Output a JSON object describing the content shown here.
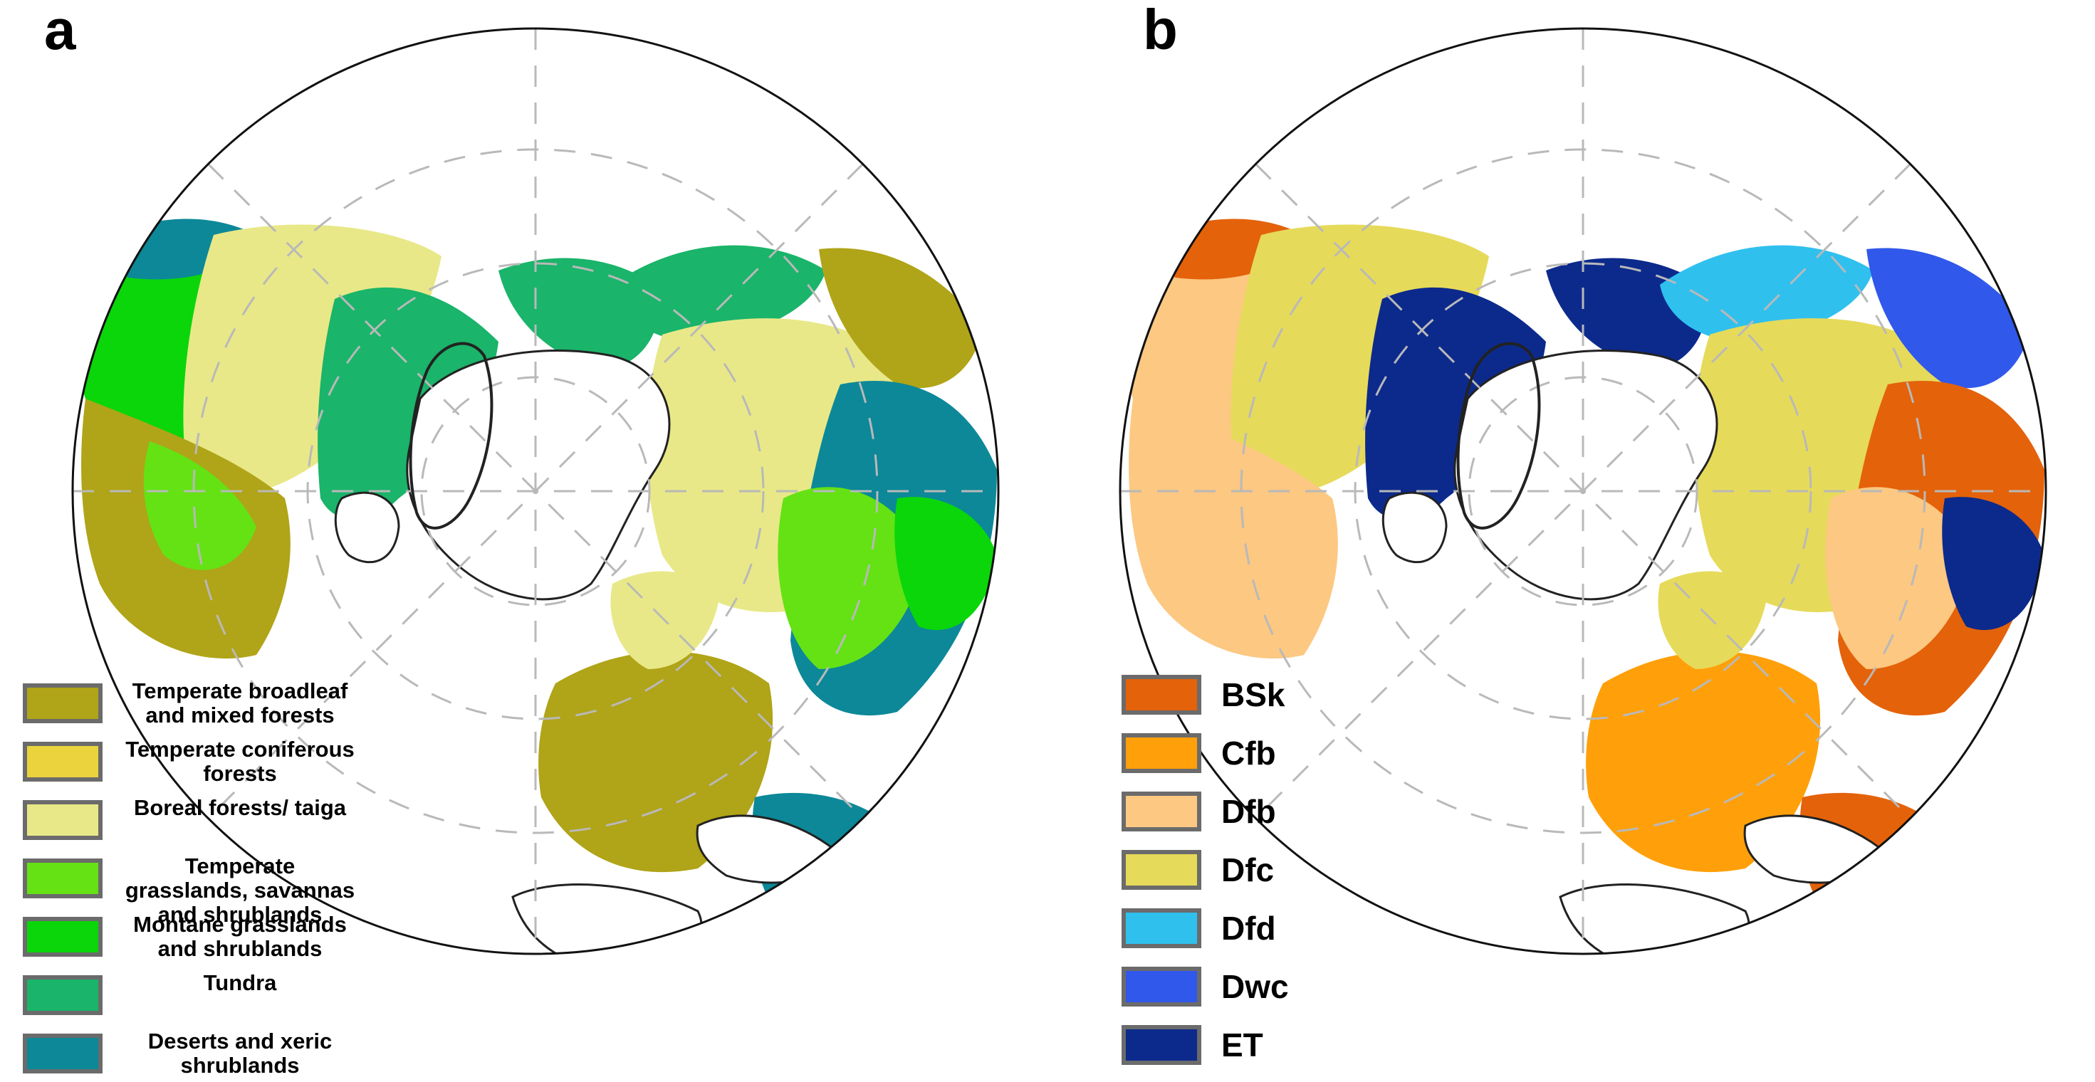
{
  "panels": [
    {
      "label": "a",
      "legend": [
        {
          "text": "Temperate broadleaf and mixed forests",
          "color": "#b0a418"
        },
        {
          "text": "Temperate coniferous forests",
          "color": "#ead33c"
        },
        {
          "text": "Boreal forests/ taiga",
          "color": "#e8e888"
        },
        {
          "text": "Temperate grasslands, savannas and shrublands",
          "color": "#64e214"
        },
        {
          "text": "Montane grasslands and shrublands",
          "color": "#0ad60a"
        },
        {
          "text": "Tundra",
          "color": "#1ab46a"
        },
        {
          "text": "Deserts and xeric shrublands",
          "color": "#0c8898"
        }
      ]
    },
    {
      "label": "b",
      "legend": [
        {
          "text": "BSk",
          "color": "#e4620a"
        },
        {
          "text": "Cfb",
          "color": "#ffa00a"
        },
        {
          "text": "Dfb",
          "color": "#fcc882"
        },
        {
          "text": "Dfc",
          "color": "#e6da5a"
        },
        {
          "text": "Dfd",
          "color": "#30c0ee"
        },
        {
          "text": "Dwc",
          "color": "#3058ea"
        },
        {
          "text": "ET",
          "color": "#0c2a8c"
        }
      ]
    }
  ]
}
